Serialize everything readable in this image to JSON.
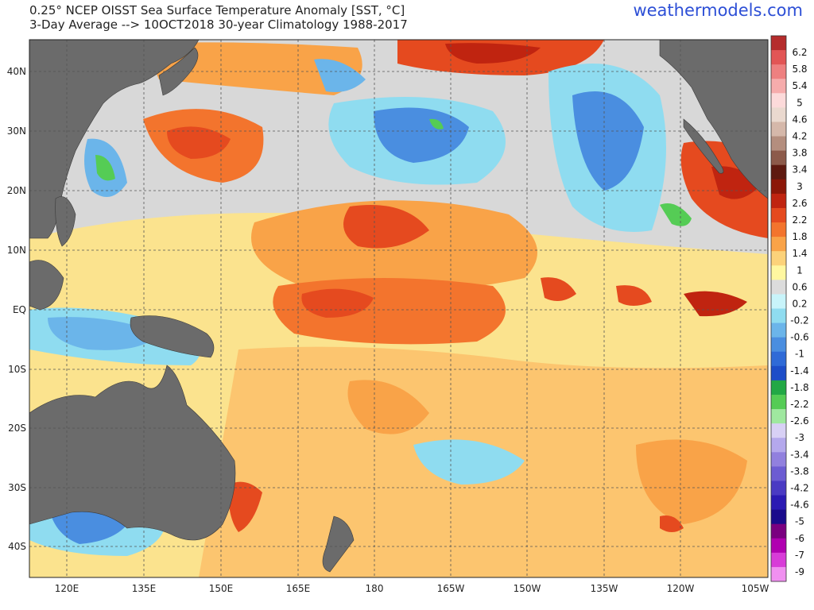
{
  "header": {
    "title_line1": "0.25° NCEP OISST Sea Surface Temperature Anomaly [SST, °C]",
    "title_line2": "3-Day Average --> 10OCT2018   30-year Climatology 1988-2017",
    "brand": "weathermodels.com"
  },
  "map": {
    "lon_ticks": [
      "120E",
      "135E",
      "150E",
      "165E",
      "180",
      "165W",
      "150W",
      "135W",
      "120W",
      "105W"
    ],
    "lat_ticks": [
      "40N",
      "30N",
      "20N",
      "10N",
      "EQ",
      "10S",
      "20S",
      "30S",
      "40S"
    ],
    "land_color": "#6b6b6b",
    "neutral_ocean_color": "#d4d4d4"
  },
  "colorbar": {
    "labels": [
      "6.2",
      "5.8",
      "5.4",
      "5",
      "4.6",
      "4.2",
      "3.8",
      "3.4",
      "3",
      "2.6",
      "2.2",
      "1.8",
      "1.4",
      "1",
      "0.6",
      "0.2",
      "-0.2",
      "-0.6",
      "-1",
      "-1.4",
      "-1.8",
      "-2.2",
      "-2.6",
      "-3",
      "-3.4",
      "-3.8",
      "-4.2",
      "-4.6",
      "-5",
      "-6",
      "-7",
      "-9"
    ],
    "colors": [
      "#b52c2c",
      "#e25555",
      "#ee8080",
      "#f6acac",
      "#fcdada",
      "#ead9cf",
      "#d5b8aa",
      "#b48e7e",
      "#8c5a4a",
      "#5e1a10",
      "#8c1708",
      "#c02410",
      "#e54a1f",
      "#f3742d",
      "#f9a348",
      "#fcd27a",
      "#fff7a0",
      "#dcdcdc",
      "#c8f4fa",
      "#8fdcf0",
      "#6bb5ea",
      "#4a8ee0",
      "#2f6ad7",
      "#1d4dc8",
      "#22a845",
      "#55cc55",
      "#9fe89f",
      "#d8d0f5",
      "#b4a8ec",
      "#9180de",
      "#6c5cd2",
      "#4a3ac3",
      "#2b1ab3",
      "#1a0b8c",
      "#7a0080",
      "#b000b0",
      "#d83cd8",
      "#f090f0"
    ]
  }
}
